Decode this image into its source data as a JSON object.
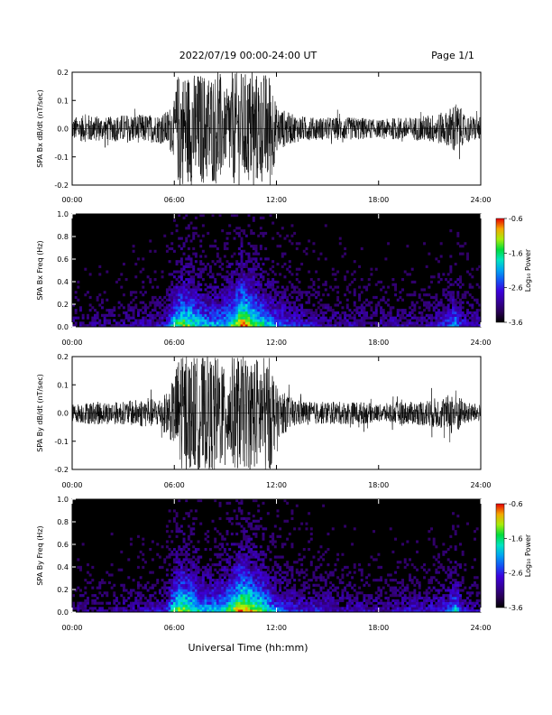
{
  "header": {
    "title": "2022/07/19  00:00-24:00 UT",
    "page": "Page 1/1"
  },
  "xlabel": "Universal Time (hh:mm)",
  "chart_data": [
    {
      "type": "line",
      "ylabel": "SPA Bx dB/dt (nT/sec)",
      "ylim": [
        -0.2,
        0.2
      ],
      "yticks": [
        "0.2",
        "0.1",
        "0.0",
        "-0.1",
        "-0.2"
      ],
      "xlim": [
        0,
        24
      ],
      "xticks": [
        "00:00",
        "06:00",
        "12:00",
        "18:00",
        "24:00"
      ],
      "envelope": {
        "hours": [
          0,
          1,
          2,
          3,
          4,
          5,
          5.5,
          6,
          6.2,
          8.7,
          9,
          9.3,
          11.7,
          12,
          13,
          14,
          15,
          16,
          17,
          18,
          19,
          20,
          21,
          22,
          22.5,
          23,
          24
        ],
        "amplitude": [
          0.04,
          0.05,
          0.04,
          0.05,
          0.05,
          0.05,
          0.06,
          0.1,
          0.2,
          0.2,
          0.12,
          0.2,
          0.2,
          0.08,
          0.05,
          0.04,
          0.04,
          0.04,
          0.04,
          0.03,
          0.04,
          0.04,
          0.05,
          0.06,
          0.1,
          0.05,
          0.04
        ]
      }
    },
    {
      "type": "heatmap",
      "ylabel": "SPA Bx Freq (Hz)",
      "ylim": [
        0.0,
        1.0
      ],
      "yticks": [
        "1.0",
        "0.8",
        "0.6",
        "0.4",
        "0.2",
        "0.0"
      ],
      "xlim": [
        0,
        24
      ],
      "xticks": [
        "00:00",
        "06:00",
        "12:00",
        "18:00",
        "24:00"
      ],
      "colorbar": {
        "label": "Log₁₀ Power",
        "ticks": [
          "-0.6",
          "-1.6",
          "-2.6",
          "-3.6"
        ],
        "range": [
          -3.6,
          -0.6
        ]
      },
      "activity": {
        "hours": [
          0,
          2,
          4,
          5.5,
          6,
          6.5,
          8,
          9,
          10,
          11,
          12,
          13,
          15,
          18,
          21,
          22,
          22.5,
          23,
          24
        ],
        "level": [
          0.15,
          0.15,
          0.2,
          0.25,
          0.55,
          0.7,
          0.45,
          0.5,
          0.85,
          0.6,
          0.4,
          0.3,
          0.2,
          0.2,
          0.2,
          0.3,
          0.45,
          0.25,
          0.2
        ]
      }
    },
    {
      "type": "line",
      "ylabel": "SPA By dB/dt (nT/sec)",
      "ylim": [
        -0.2,
        0.2
      ],
      "yticks": [
        "0.2",
        "0.1",
        "0.0",
        "-0.1",
        "-0.2"
      ],
      "xlim": [
        0,
        24
      ],
      "xticks": [
        "00:00",
        "06:00",
        "12:00",
        "18:00",
        "24:00"
      ],
      "envelope": {
        "hours": [
          0,
          1,
          2,
          3,
          4,
          5,
          5.5,
          6,
          6.2,
          8.7,
          9,
          9.3,
          11.7,
          12,
          13,
          14,
          15,
          16,
          17,
          18,
          19,
          20,
          21,
          22,
          22.5,
          23,
          24
        ],
        "amplitude": [
          0.03,
          0.04,
          0.04,
          0.04,
          0.05,
          0.05,
          0.07,
          0.12,
          0.2,
          0.2,
          0.14,
          0.2,
          0.2,
          0.09,
          0.05,
          0.04,
          0.04,
          0.04,
          0.04,
          0.03,
          0.04,
          0.04,
          0.05,
          0.06,
          0.09,
          0.04,
          0.03
        ]
      }
    },
    {
      "type": "heatmap",
      "ylabel": "SPA By Freq (Hz)",
      "ylim": [
        0.0,
        1.0
      ],
      "yticks": [
        "1.0",
        "0.8",
        "0.6",
        "0.4",
        "0.2",
        "0.0"
      ],
      "xlim": [
        0,
        24
      ],
      "xticks": [
        "00:00",
        "06:00",
        "12:00",
        "18:00",
        "24:00"
      ],
      "colorbar": {
        "label": "Log₁₀ Power",
        "ticks": [
          "-0.6",
          "-1.6",
          "-2.6",
          "-3.6"
        ],
        "range": [
          -3.6,
          -0.6
        ]
      },
      "activity": {
        "hours": [
          0,
          2,
          4,
          5.5,
          6,
          6.5,
          8,
          9,
          10,
          11,
          12,
          13,
          15,
          18,
          21,
          22,
          22.5,
          23,
          24
        ],
        "level": [
          0.15,
          0.15,
          0.2,
          0.25,
          0.6,
          0.7,
          0.45,
          0.55,
          0.85,
          0.65,
          0.4,
          0.3,
          0.25,
          0.2,
          0.25,
          0.3,
          0.5,
          0.25,
          0.2
        ]
      }
    }
  ],
  "colors": {
    "trace": "#000000",
    "background": "#000000"
  }
}
